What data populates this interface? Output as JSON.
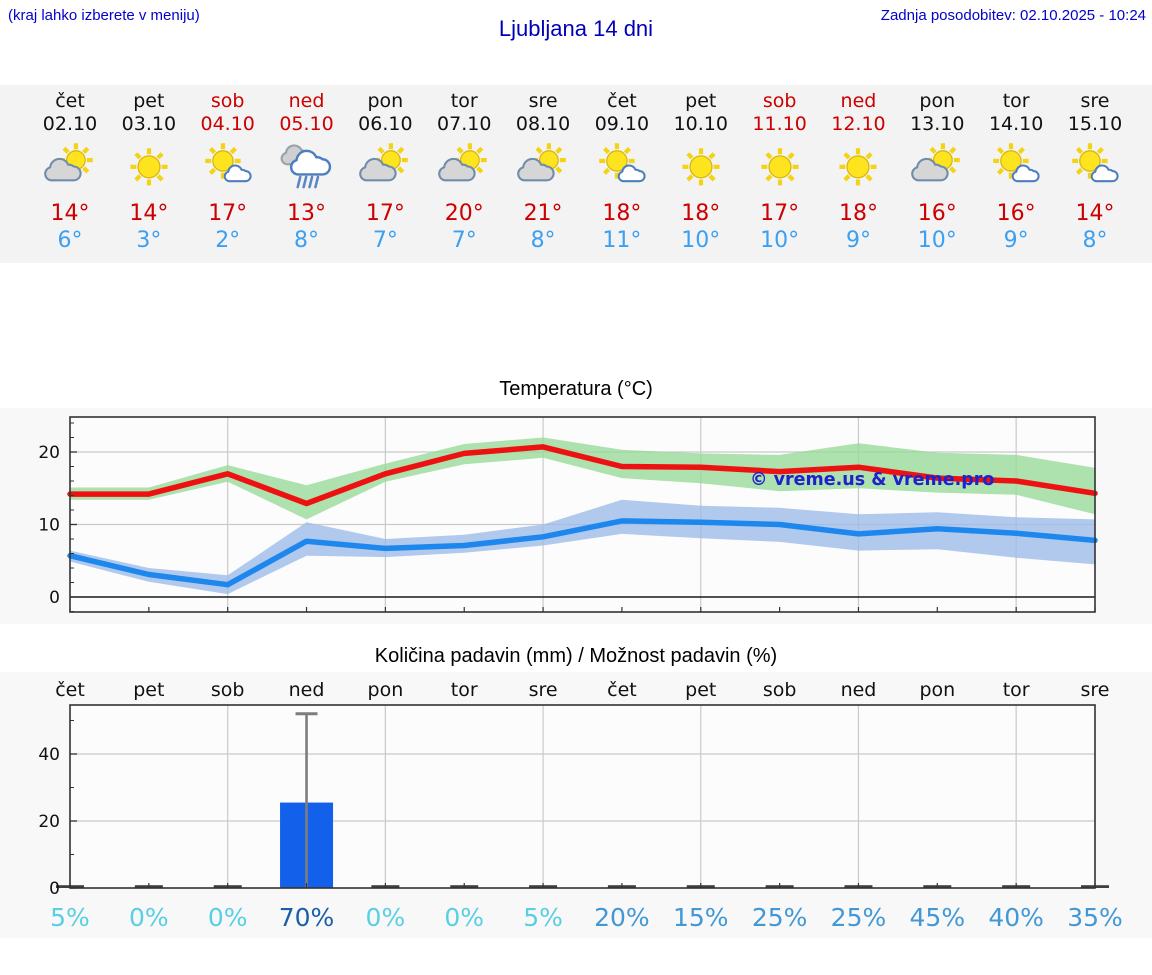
{
  "header": {
    "menu_hint": "(kraj lahko izberete v meniju)",
    "title": "Ljubljana 14 dni",
    "last_update": "Zadnja posodobitev: 02.10.2025 - 10:24"
  },
  "forecast": {
    "days": [
      {
        "name": "čet",
        "date": "02.10",
        "weekend": false,
        "icon": "cloud-sun",
        "high": "14°",
        "low": "6°"
      },
      {
        "name": "pet",
        "date": "03.10",
        "weekend": false,
        "icon": "sun",
        "high": "14°",
        "low": "3°"
      },
      {
        "name": "sob",
        "date": "04.10",
        "weekend": true,
        "icon": "sun-cloud",
        "high": "17°",
        "low": "2°"
      },
      {
        "name": "ned",
        "date": "05.10",
        "weekend": true,
        "icon": "rain",
        "high": "13°",
        "low": "8°"
      },
      {
        "name": "pon",
        "date": "06.10",
        "weekend": false,
        "icon": "cloud-sun",
        "high": "17°",
        "low": "7°"
      },
      {
        "name": "tor",
        "date": "07.10",
        "weekend": false,
        "icon": "cloud-sun",
        "high": "20°",
        "low": "7°"
      },
      {
        "name": "sre",
        "date": "08.10",
        "weekend": false,
        "icon": "cloud-sun",
        "high": "21°",
        "low": "8°"
      },
      {
        "name": "čet",
        "date": "09.10",
        "weekend": false,
        "icon": "sun-cloud",
        "high": "18°",
        "low": "11°"
      },
      {
        "name": "pet",
        "date": "10.10",
        "weekend": false,
        "icon": "sun",
        "high": "18°",
        "low": "10°"
      },
      {
        "name": "sob",
        "date": "11.10",
        "weekend": true,
        "icon": "sun",
        "high": "17°",
        "low": "10°"
      },
      {
        "name": "ned",
        "date": "12.10",
        "weekend": true,
        "icon": "sun",
        "high": "18°",
        "low": "9°"
      },
      {
        "name": "pon",
        "date": "13.10",
        "weekend": false,
        "icon": "cloud-sun",
        "high": "16°",
        "low": "10°"
      },
      {
        "name": "tor",
        "date": "14.10",
        "weekend": false,
        "icon": "sun-cloud",
        "high": "16°",
        "low": "9°"
      },
      {
        "name": "sre",
        "date": "15.10",
        "weekend": false,
        "icon": "sun-cloud",
        "high": "14°",
        "low": "8°"
      }
    ]
  },
  "chart_data": [
    {
      "type": "line",
      "title": "Temperatura (°C)",
      "categories": [
        "čet 02.10",
        "pet 03.10",
        "sob 04.10",
        "ned 05.10",
        "pon 06.10",
        "tor 07.10",
        "sre 08.10",
        "čet 09.10",
        "pet 10.10",
        "sob 11.10",
        "ned 12.10",
        "pon 13.10",
        "tor 14.10",
        "sre 15.10"
      ],
      "series": [
        {
          "name": "max-temp",
          "color": "#ee1111",
          "values": [
            14.2,
            14.2,
            17,
            12.9,
            17,
            19.8,
            20.7,
            18,
            17.9,
            17.3,
            17.9,
            16.4,
            16,
            14.3
          ]
        },
        {
          "name": "min-temp",
          "color": "#1e87ee",
          "values": [
            5.7,
            3.1,
            1.7,
            7.7,
            6.7,
            7.1,
            8.3,
            10.5,
            10.3,
            10,
            8.7,
            9.4,
            8.8,
            7.8
          ]
        }
      ],
      "bands": [
        {
          "name": "max-temp-range",
          "color": "#98d998",
          "upper": [
            15.1,
            15.1,
            18.2,
            15.4,
            18.4,
            21.1,
            22.0,
            20.3,
            19.8,
            19.6,
            21.2,
            19.9,
            19.6,
            17.8
          ],
          "lower": [
            13.4,
            13.4,
            15.9,
            10.7,
            15.9,
            18.3,
            19.2,
            16.4,
            15.7,
            14.6,
            15.0,
            14.4,
            14.1,
            11.4
          ]
        },
        {
          "name": "min-temp-range",
          "color": "#9dbbe9",
          "upper": [
            6.4,
            4.0,
            3.0,
            10.3,
            8.0,
            8.6,
            10.0,
            13.4,
            12.6,
            12.3,
            11.4,
            11.7,
            11.0,
            10.7
          ],
          "lower": [
            4.9,
            2.1,
            0.4,
            5.7,
            5.5,
            6.1,
            7.1,
            8.7,
            8.1,
            7.6,
            6.4,
            6.6,
            5.4,
            4.5
          ]
        }
      ],
      "ylim": [
        -2,
        25
      ],
      "yticks": [
        0,
        10,
        20
      ],
      "grid": true,
      "watermark": "© vreme.us & vreme.pro",
      "watermark_color": "#2020cc"
    },
    {
      "type": "bar",
      "title": "Količina padavin (mm) / Možnost padavin (%)",
      "categories": [
        "čet",
        "pet",
        "sob",
        "ned",
        "pon",
        "tor",
        "sre",
        "čet",
        "pet",
        "sob",
        "ned",
        "pon",
        "tor",
        "sre"
      ],
      "values": [
        0,
        0,
        0,
        25.5,
        0,
        0,
        0,
        0,
        0,
        0,
        0,
        0,
        0,
        0
      ],
      "whisker_max": [
        0,
        0,
        0,
        52,
        0,
        0,
        0,
        0,
        0,
        0,
        0,
        0,
        0,
        0
      ],
      "probabilities_pct": [
        5,
        0,
        0,
        70,
        0,
        0,
        5,
        20,
        15,
        25,
        25,
        45,
        40,
        35
      ],
      "ylim": [
        0,
        54
      ],
      "yticks": [
        0,
        20,
        40
      ],
      "grid": true,
      "colors": {
        "bar": "#1361ea",
        "whisker": "#7d7d7d",
        "prob_low": "#58cfe3",
        "prob_mid": "#4298d6",
        "prob_high": "#1a5fab"
      }
    }
  ]
}
